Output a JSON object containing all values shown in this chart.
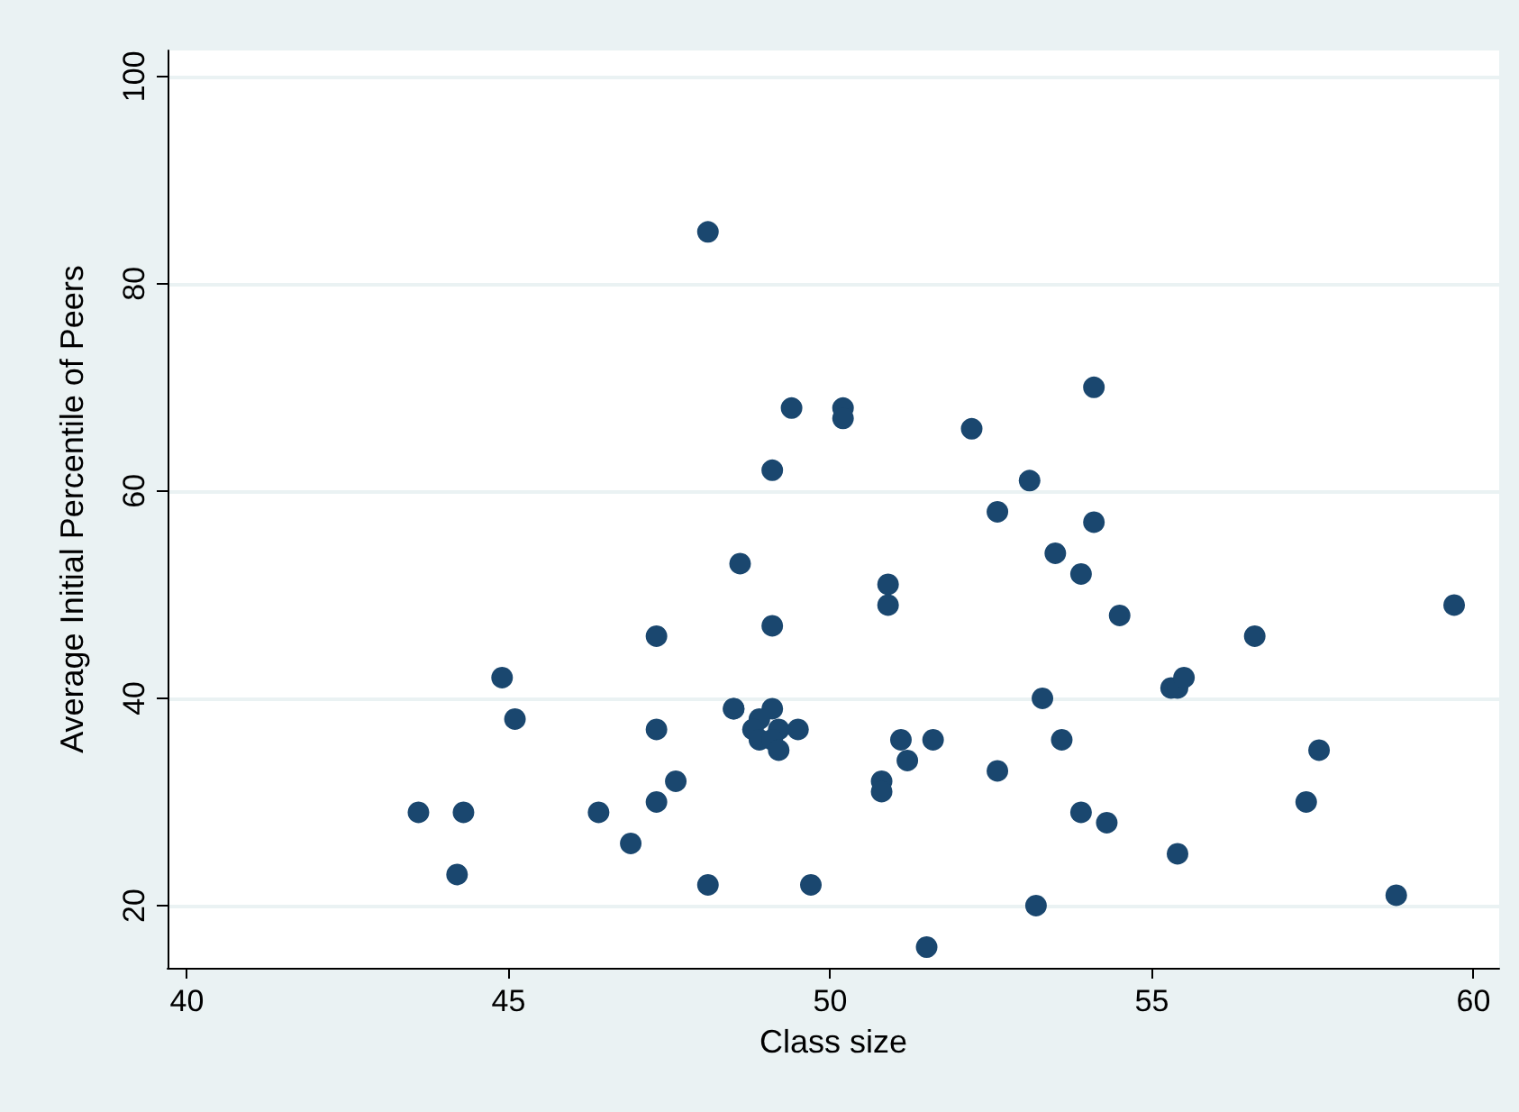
{
  "chart_data": {
    "type": "scatter",
    "xlabel": "Class size",
    "ylabel": "Average Initial Percentile of Peers",
    "x": [
      43.6,
      44.2,
      44.3,
      44.9,
      45.1,
      46.4,
      46.9,
      47.3,
      47.3,
      47.3,
      47.6,
      48.1,
      48.1,
      48.5,
      48.6,
      48.5,
      49.1,
      48.9,
      48.8,
      49.2,
      48.9,
      49.1,
      49.2,
      49.5,
      49.1,
      50.9,
      50.9,
      49.7,
      51.5,
      53.2,
      51.1,
      51.6,
      51.2,
      50.8,
      50.8,
      52.6,
      53.3,
      49.4,
      50.2,
      50.2,
      52.2,
      49.1,
      54.1,
      53.1,
      52.6,
      54.1,
      53.5,
      53.9,
      54.5,
      53.6,
      53.9,
      54.3,
      55.3,
      55.4,
      55.5,
      55.4,
      56.6,
      57.4,
      57.6,
      58.8,
      59.7
    ],
    "values": [
      29,
      23,
      29,
      42,
      38,
      29,
      26,
      46,
      37,
      30,
      32,
      22,
      85,
      39,
      53,
      39,
      39,
      38,
      37,
      37,
      36,
      36,
      35,
      37,
      47,
      51,
      49,
      22,
      16,
      20,
      36,
      36,
      34,
      32,
      31,
      33,
      40,
      68,
      68,
      67,
      66,
      62,
      70,
      61,
      58,
      57,
      54,
      52,
      48,
      36,
      29,
      28,
      41,
      41,
      42,
      25,
      46,
      30,
      35,
      21,
      49
    ],
    "color": "#1a476f",
    "marker": "circle",
    "xlim": [
      39.7,
      60.4
    ],
    "xticks": [
      40,
      45,
      50,
      55,
      60
    ],
    "ylim": [
      14,
      102.5
    ],
    "yticks": [
      20,
      40,
      60,
      80,
      100
    ],
    "grid": "y"
  }
}
